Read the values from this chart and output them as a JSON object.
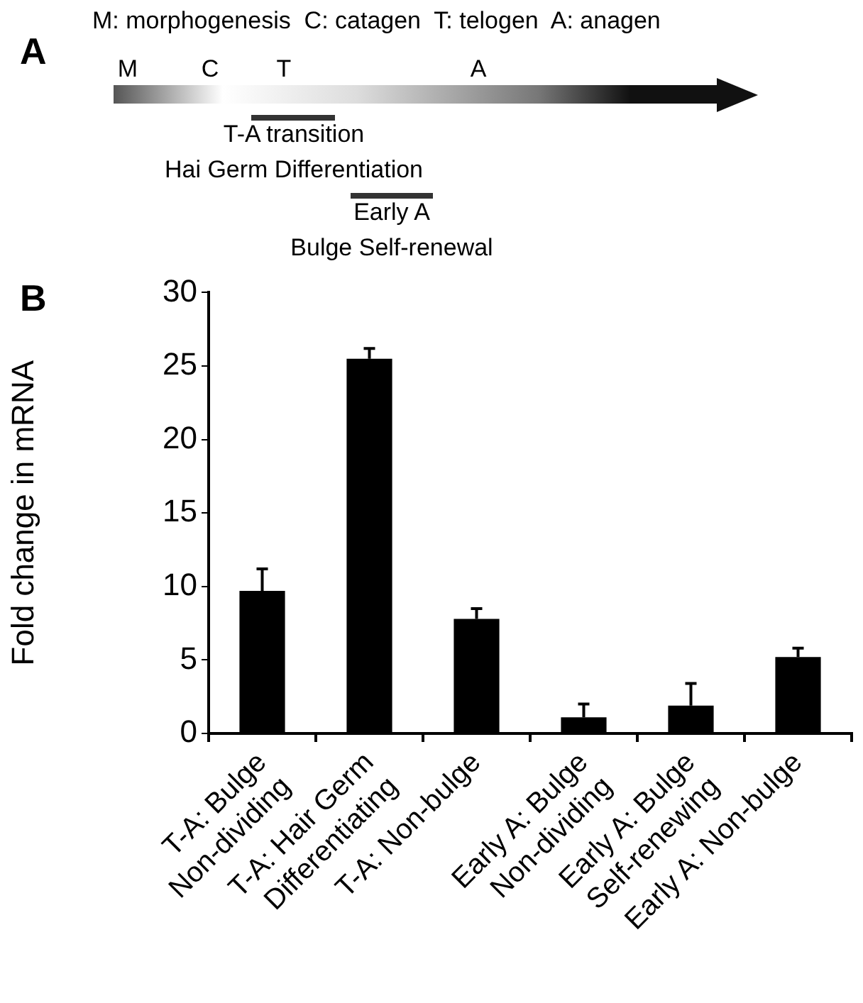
{
  "chart_data": {
    "type": "bar",
    "categories": [
      "T-A: Bulge\nNon-dividing",
      "T-A: Hair Germ\nDifferentiating",
      "T-A: Non-bulge",
      "Early A: Bulge\nNon-dividing",
      "Early A: Bulge\nSelf-renewing",
      "Early A: Non-bulge"
    ],
    "values": [
      9.7,
      25.5,
      7.8,
      1.1,
      1.9,
      5.2
    ],
    "errors": [
      1.5,
      0.7,
      0.7,
      0.9,
      1.5,
      0.6
    ],
    "color": "#000000",
    "ylabel": "Fold change in mRNA",
    "ylim": [
      0,
      30
    ],
    "yticks": [
      0,
      5,
      10,
      15,
      20,
      25,
      30
    ],
    "grid": false,
    "annotations": [
      "A",
      "M: morphogenesis  C: catagen  T: telogen  A: anagen",
      "M",
      "C",
      "T",
      "A",
      "T-A transition",
      "Hai Germ Differentiation",
      "Early A",
      "Bulge Self-renewal",
      "B"
    ]
  }
}
